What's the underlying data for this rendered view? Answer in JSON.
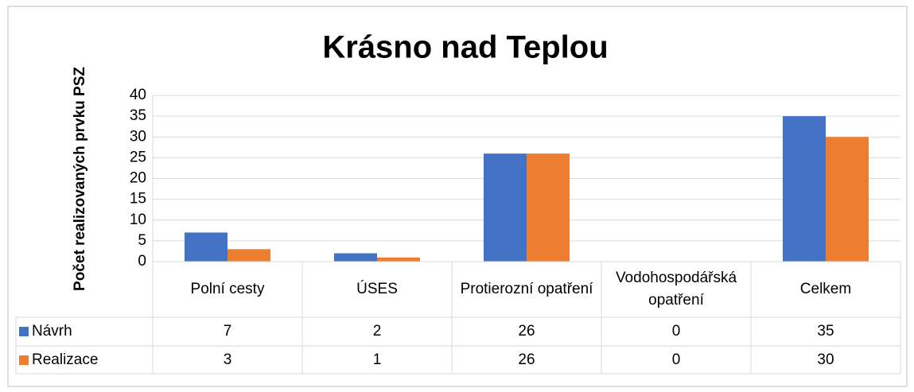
{
  "chart_data": {
    "type": "bar",
    "title": "Krásno nad Teplou",
    "y_label": "Počet realizovaných prvku PSZ",
    "categories": [
      "Polní cesty",
      "ÚSES",
      "Protierozní opatření",
      "Vodohospodářská opatření",
      "Celkem"
    ],
    "series": [
      {
        "name": "Návrh",
        "color": "#4472c4",
        "values": [
          7,
          2,
          26,
          0,
          35
        ]
      },
      {
        "name": "Realizace",
        "color": "#ed7d31",
        "values": [
          3,
          1,
          26,
          0,
          30
        ]
      }
    ],
    "ylim": [
      0,
      40
    ],
    "yticks": [
      0,
      5,
      10,
      15,
      20,
      25,
      30,
      35,
      40
    ],
    "grid": true,
    "data_table": true
  }
}
